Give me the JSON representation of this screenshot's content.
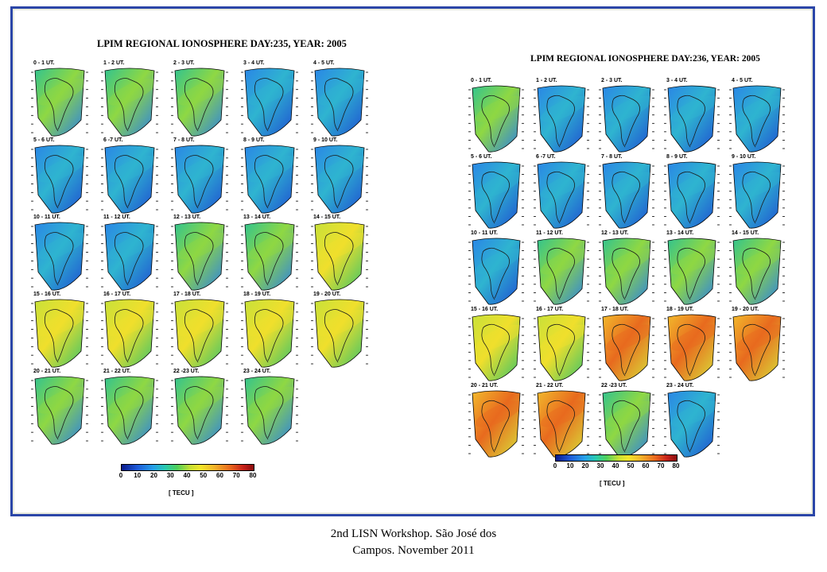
{
  "left_panel": {
    "title": "LPIM REGIONAL IONOSPHERE DAY:235, YEAR: 2005",
    "maps": [
      {
        "label": "0 - 1 UT.",
        "palette": "mid"
      },
      {
        "label": "1 - 2 UT.",
        "palette": "mid"
      },
      {
        "label": "2 - 3 UT.",
        "palette": "mid"
      },
      {
        "label": "3 - 4 UT.",
        "palette": "low"
      },
      {
        "label": "4 - 5 UT.",
        "palette": "low"
      },
      {
        "label": "5 - 6 UT.",
        "palette": "low"
      },
      {
        "label": "6 -7 UT.",
        "palette": "low"
      },
      {
        "label": "7 - 8 UT.",
        "palette": "low"
      },
      {
        "label": "8 - 9 UT.",
        "palette": "low"
      },
      {
        "label": "9 - 10 UT.",
        "palette": "low"
      },
      {
        "label": "10 - 11 UT.",
        "palette": "low"
      },
      {
        "label": "11 - 12 UT.",
        "palette": "low"
      },
      {
        "label": "12 - 13 UT.",
        "palette": "mid"
      },
      {
        "label": "13 - 14 UT.",
        "palette": "mid"
      },
      {
        "label": "14 - 15 UT.",
        "palette": "high"
      },
      {
        "label": "15 - 16 UT.",
        "palette": "high"
      },
      {
        "label": "16 - 17 UT.",
        "palette": "high"
      },
      {
        "label": "17 - 18 UT.",
        "palette": "high"
      },
      {
        "label": "18 - 19 UT.",
        "palette": "high"
      },
      {
        "label": "19 - 20 UT.",
        "palette": "high"
      },
      {
        "label": "20 - 21 UT.",
        "palette": "mid"
      },
      {
        "label": "21 - 22 UT.",
        "palette": "mid"
      },
      {
        "label": "22 -23 UT.",
        "palette": "mid"
      },
      {
        "label": "23 - 24 UT.",
        "palette": "mid"
      }
    ],
    "colorbar": {
      "ticks": [
        "0",
        "10",
        "20",
        "30",
        "40",
        "50",
        "60",
        "70",
        "80"
      ],
      "unit": "[ TECU ]"
    }
  },
  "right_panel": {
    "title": "LPIM REGIONAL IONOSPHERE DAY:236, YEAR: 2005",
    "maps": [
      {
        "label": "0 - 1 UT.",
        "palette": "mid"
      },
      {
        "label": "1 - 2 UT.",
        "palette": "low"
      },
      {
        "label": "2 - 3 UT.",
        "palette": "low"
      },
      {
        "label": "3 - 4 UT.",
        "palette": "low"
      },
      {
        "label": "4 - 5 UT.",
        "palette": "low"
      },
      {
        "label": "5 - 6 UT.",
        "palette": "low"
      },
      {
        "label": "6 -7 UT.",
        "palette": "low"
      },
      {
        "label": "7 - 8 UT.",
        "palette": "low"
      },
      {
        "label": "8 - 9 UT.",
        "palette": "low"
      },
      {
        "label": "9 - 10 UT.",
        "palette": "low"
      },
      {
        "label": "10 - 11 UT.",
        "palette": "low"
      },
      {
        "label": "11 - 12 UT.",
        "palette": "mid"
      },
      {
        "label": "12 - 13 UT.",
        "palette": "mid"
      },
      {
        "label": "13 - 14 UT.",
        "palette": "mid"
      },
      {
        "label": "14 - 15 UT.",
        "palette": "mid"
      },
      {
        "label": "15 - 16 UT.",
        "palette": "high"
      },
      {
        "label": "16 - 17 UT.",
        "palette": "high"
      },
      {
        "label": "17 - 18 UT.",
        "palette": "hot"
      },
      {
        "label": "18 - 19 UT.",
        "palette": "hot"
      },
      {
        "label": "19 - 20 UT.",
        "palette": "hot"
      },
      {
        "label": "20 - 21 UT.",
        "palette": "hot"
      },
      {
        "label": "21 - 22 UT.",
        "palette": "hot"
      },
      {
        "label": "22 -23 UT.",
        "palette": "mid"
      },
      {
        "label": "23 - 24 UT.",
        "palette": "low"
      }
    ],
    "colorbar": {
      "ticks": [
        "0",
        "10",
        "20",
        "30",
        "40",
        "50",
        "60",
        "70",
        "80"
      ],
      "unit": "[ TECU ]"
    }
  },
  "colors": {
    "frame": "#2b46a8",
    "low": "#1e5bd9",
    "mid": "#3fc26a",
    "high": "#e6e02e",
    "hot": "#e8851f"
  },
  "footer": {
    "line1": "2nd LISN Workshop. São José dos",
    "line2": "Campos. November 2011"
  }
}
